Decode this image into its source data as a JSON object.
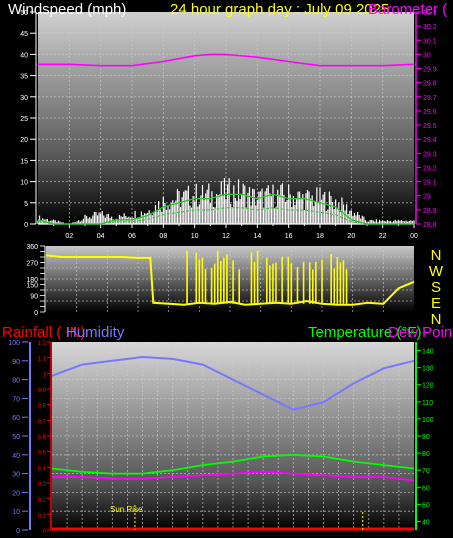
{
  "header": {
    "windspeed_label": "Windspeed (mph)",
    "date_title": "24 hour graph day : July 09 2025",
    "barometer_label": "Barometer ("
  },
  "lower_header": {
    "rainfall_label": "Rainfall ( IN)",
    "humidity_label": "Humidity",
    "temperature_label": "Temperature (°F)",
    "dewpoint_label": "Dew Point"
  },
  "direction_letters": [
    "N",
    "W",
    "S",
    "E",
    "N"
  ],
  "annotation": {
    "sunrise_label": "Sun Rise"
  },
  "colors": {
    "wind": "#ffffff",
    "wind_gust_band": "#22cc22",
    "barometer": "#ff00ff",
    "direction": "#ffff00",
    "rainfall": "#ff0000",
    "humidity": "#7777ff",
    "temperature": "#00ff00",
    "dewpoint": "#ff00ff",
    "annotation": "#ffff00",
    "grid": "#cccccc"
  },
  "chart_data": [
    {
      "type": "line",
      "title": "24 hour graph day : July 09 2025",
      "ylabel": "Windspeed (mph)",
      "y2label": "Barometer (",
      "x_ticks": [
        "02",
        "04",
        "06",
        "08",
        "10",
        "12",
        "14",
        "16",
        "18",
        "20",
        "22",
        "00"
      ],
      "y_ticks": [
        0,
        5,
        10,
        15,
        20,
        25,
        30,
        35,
        40,
        45,
        50
      ],
      "ylim": [
        0,
        50
      ],
      "y2_ticks": [
        28.8,
        28.9,
        29,
        29.1,
        29.2,
        29.3,
        29.4,
        29.5,
        29.6,
        29.7,
        29.8,
        29.9,
        30,
        30.1,
        30.2,
        30.3
      ],
      "y2lim": [
        28.8,
        30.3
      ],
      "grid": true,
      "series": [
        {
          "name": "Barometer",
          "axis": "y2",
          "x": [
            0,
            2,
            4,
            6,
            8,
            10,
            11,
            12,
            14,
            16,
            18,
            20,
            22,
            24
          ],
          "values": [
            29.93,
            29.93,
            29.92,
            29.92,
            29.95,
            29.99,
            30.0,
            30.0,
            29.98,
            29.95,
            29.92,
            29.92,
            29.92,
            29.93
          ]
        },
        {
          "name": "Windspeed",
          "axis": "y",
          "x": [
            0,
            1,
            2,
            3,
            4,
            5,
            6,
            7,
            8,
            9,
            10,
            11,
            12,
            13,
            14,
            15,
            16,
            17,
            18,
            19,
            20,
            21,
            22,
            23,
            24
          ],
          "values": [
            1,
            0,
            0,
            0,
            0,
            1,
            1,
            2,
            4,
            5,
            6,
            6,
            7,
            7,
            6,
            7,
            6,
            6,
            5,
            4,
            1,
            0,
            0,
            0,
            0
          ]
        },
        {
          "name": "Wind gust",
          "axis": "y",
          "x": [
            0,
            1,
            2,
            3,
            4,
            5,
            6,
            7,
            8,
            9,
            10,
            11,
            12,
            13,
            14,
            15,
            16,
            17,
            18,
            19,
            20,
            21,
            22,
            23,
            24
          ],
          "values": [
            2,
            1,
            0,
            2,
            3,
            2,
            3,
            4,
            7,
            8,
            9,
            9,
            10,
            10,
            8,
            9,
            9,
            8,
            8,
            7,
            4,
            1,
            1,
            1,
            1
          ]
        }
      ]
    },
    {
      "type": "line",
      "y_ticks": [
        0,
        30,
        60,
        90,
        120,
        150,
        180,
        210,
        240,
        270,
        300,
        330,
        360
      ],
      "ylim": [
        0,
        360
      ],
      "grid": true,
      "series": [
        {
          "name": "Wind direction",
          "x": [
            0,
            1,
            2,
            3,
            4,
            5,
            6,
            6.8,
            7,
            8,
            9,
            10,
            11,
            12,
            13,
            14,
            15,
            16,
            17,
            18,
            19,
            20,
            21,
            22,
            23,
            24
          ],
          "values": [
            310,
            300,
            300,
            300,
            300,
            300,
            295,
            295,
            50,
            45,
            40,
            50,
            45,
            55,
            40,
            45,
            50,
            45,
            60,
            45,
            40,
            40,
            50,
            45,
            130,
            165
          ]
        }
      ]
    },
    {
      "type": "line",
      "ylabel": "Rainfall ( IN)",
      "y2label": "Temperature (°F)",
      "y_ticks_humidity": [
        0,
        10,
        20,
        30,
        40,
        50,
        60,
        70,
        80,
        90,
        100
      ],
      "ylim_humidity": [
        0,
        100
      ],
      "y_ticks_rain": [
        0,
        0.1,
        0.2,
        0.3,
        0.4,
        0.5,
        0.6,
        0.7,
        0.8,
        0.9,
        1,
        1.1,
        1.2
      ],
      "ylim_rain": [
        0,
        1.2
      ],
      "y2_ticks": [
        40,
        50,
        60,
        70,
        80,
        90,
        100,
        110,
        120,
        130,
        140
      ],
      "y2lim": [
        35,
        145
      ],
      "grid": true,
      "annotation": "Sun Rise",
      "series": [
        {
          "name": "Humidity",
          "axis": "humidity",
          "x": [
            0,
            2,
            4,
            6,
            8,
            10,
            12,
            14,
            16,
            18,
            20,
            22,
            24
          ],
          "values": [
            82,
            88,
            90,
            92,
            91,
            88,
            80,
            72,
            64,
            68,
            78,
            86,
            90
          ]
        },
        {
          "name": "Temperature",
          "axis": "y2",
          "x": [
            0,
            2,
            4,
            6,
            8,
            10,
            12,
            14,
            16,
            18,
            20,
            22,
            24
          ],
          "values": [
            71,
            69,
            68,
            68,
            70,
            73,
            75,
            78,
            79,
            78,
            75,
            73,
            71
          ]
        },
        {
          "name": "Dew Point",
          "axis": "y2",
          "x": [
            0,
            2,
            4,
            6,
            8,
            10,
            12,
            14,
            16,
            18,
            20,
            22,
            24
          ],
          "values": [
            66,
            66,
            65,
            65,
            66,
            67,
            68,
            69,
            68,
            67,
            66,
            66,
            64
          ]
        },
        {
          "name": "Rainfall",
          "axis": "rain",
          "x": [
            0,
            24
          ],
          "values": [
            0,
            0
          ]
        }
      ]
    }
  ]
}
